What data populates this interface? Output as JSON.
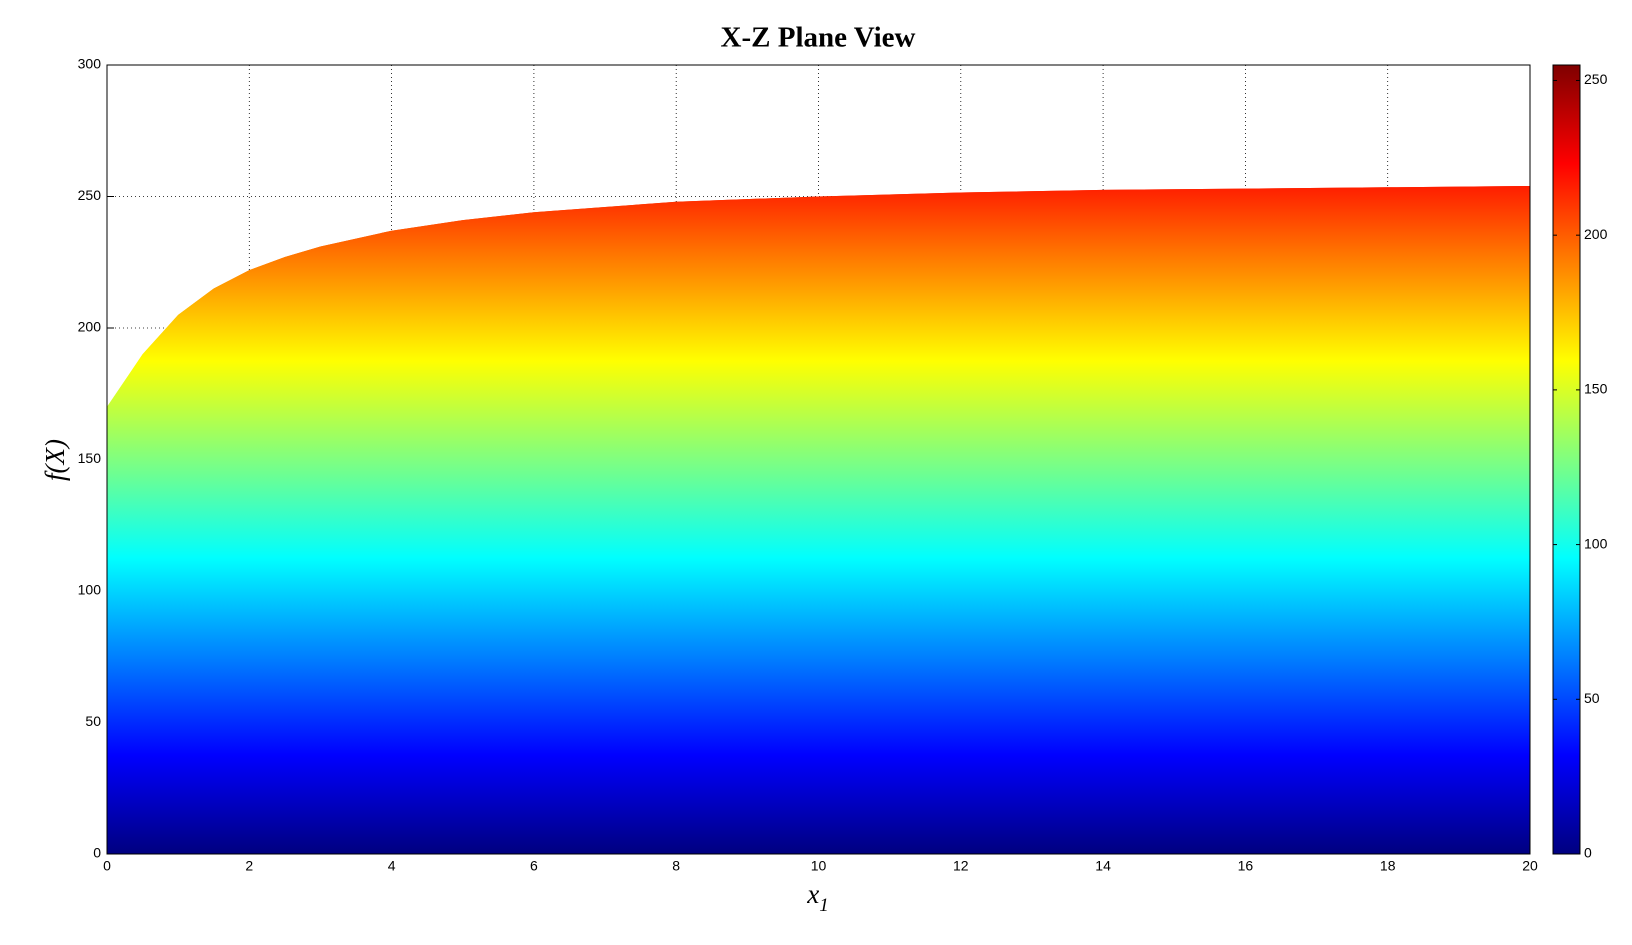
{
  "chart_data": {
    "type": "area",
    "title": "X-Z Plane View",
    "xlabel": {
      "text": "x",
      "subscript": "1"
    },
    "ylabel": "f(X)",
    "x": [
      0,
      0.5,
      1,
      1.5,
      2,
      2.5,
      3,
      4,
      5,
      6,
      7,
      8,
      10,
      12,
      14,
      16,
      18,
      20
    ],
    "series": [
      {
        "values": [
          170,
          190,
          205,
          215,
          222,
          227,
          231,
          237,
          241,
          244,
          246,
          248,
          250,
          251.5,
          252.5,
          253,
          253.5,
          254
        ]
      }
    ],
    "colormap": "jet",
    "xlim": [
      0,
      20
    ],
    "xticks": [
      0,
      2,
      4,
      6,
      8,
      10,
      12,
      14,
      16,
      18,
      20
    ],
    "ylim": [
      0,
      300
    ],
    "yticks": [
      0,
      50,
      100,
      150,
      200,
      250,
      300
    ],
    "clim": [
      0,
      255
    ],
    "cticks": [
      0,
      50,
      100,
      150,
      200,
      250
    ],
    "grid": true
  }
}
